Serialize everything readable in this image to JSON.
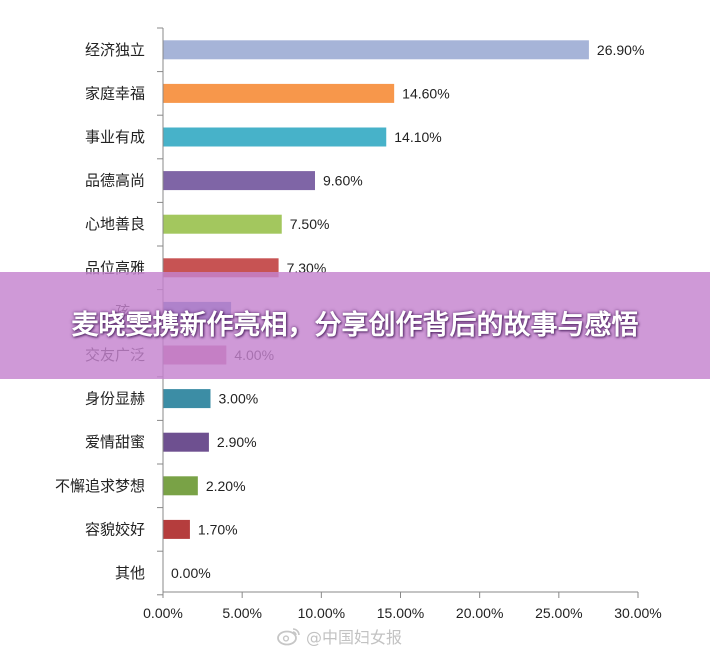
{
  "chart_data": {
    "type": "bar",
    "orientation": "horizontal",
    "categories": [
      "经济独立",
      "家庭幸福",
      "事业有成",
      "品德高尚",
      "心地善良",
      "品位高雅",
      "孩…",
      "交友广泛",
      "身份显赫",
      "爱情甜蜜",
      "不懈追求梦想",
      "容貌姣好",
      "其他"
    ],
    "values": [
      26.9,
      14.6,
      14.1,
      9.6,
      7.5,
      7.3,
      4.3,
      4.0,
      3.0,
      2.9,
      2.2,
      1.7,
      0.0
    ],
    "value_labels": [
      "26.90%",
      "14.60%",
      "14.10%",
      "9.60%",
      "7.50%",
      "7.30%",
      "",
      "4.00%",
      "3.00%",
      "2.90%",
      "2.20%",
      "1.70%",
      "0.00%"
    ],
    "colors": [
      "#a6b4d8",
      "#f7974b",
      "#47b2c9",
      "#7f65a6",
      "#a3c75e",
      "#c75353",
      "#4f81bd",
      "#c9729a",
      "#3c8da5",
      "#6e5090",
      "#79a246",
      "#b53d3d",
      "#4f81bd"
    ],
    "x_ticks": [
      "0.00%",
      "5.00%",
      "10.00%",
      "15.00%",
      "20.00%",
      "25.00%",
      "30.00%"
    ],
    "xlim": [
      0,
      30
    ],
    "grid": false,
    "title": "",
    "xlabel": "",
    "ylabel": ""
  },
  "banner": {
    "headline": "麦晓雯携新作亮相，分享创作背后的故事与感悟"
  },
  "watermark": {
    "text": "@中国妇女报",
    "icon": "weibo-icon"
  }
}
